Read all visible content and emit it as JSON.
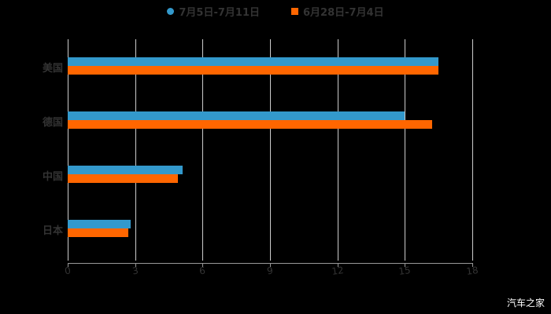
{
  "chart_data": {
    "type": "bar",
    "orientation": "horizontal",
    "title": "",
    "xlabel": "",
    "ylabel": "",
    "categories": [
      "美国",
      "德国",
      "中国",
      "日本"
    ],
    "series": [
      {
        "name": "7月5日-7月11日",
        "color": "#3399cc",
        "values": [
          16.5,
          15.0,
          5.1,
          2.8
        ]
      },
      {
        "name": "6月28日-7月4日",
        "color": "#ff6600",
        "values": [
          16.5,
          16.2,
          4.9,
          2.7
        ]
      }
    ],
    "xlim": [
      0,
      18
    ],
    "xticks": [
      "0",
      "3",
      "6",
      "9",
      "12",
      "15",
      "18"
    ],
    "grid": true,
    "legend_position": "top"
  },
  "legend": {
    "items": [
      {
        "label": "7月5日-7月11日",
        "color": "#3399cc",
        "shape": "circle"
      },
      {
        "label": "6月28日-7月4日",
        "color": "#ff6600",
        "shape": "square"
      }
    ]
  },
  "watermark": "汽车之家"
}
